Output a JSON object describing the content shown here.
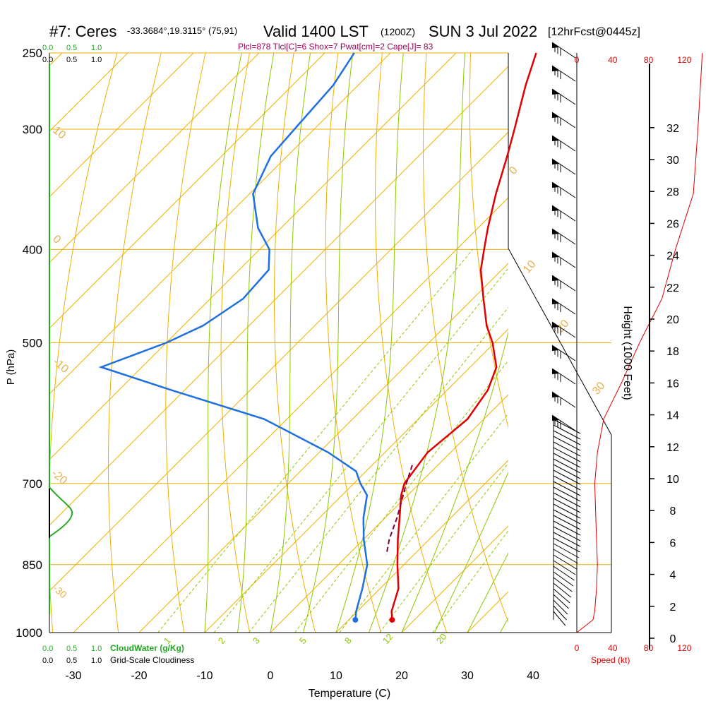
{
  "header": {
    "title_main": "#7: Ceres",
    "title_coords": "-33.3684°,19.3115° (75,91)",
    "title_valid": "Valid 1400 LST",
    "title_utc": "(1200Z)",
    "title_date": "SUN 3 Jul 2022",
    "title_fcst": "[12hrFcst@0445z]",
    "indices": "Plcl=878 Tlcl[C]=6 Shox=7 Pwat[cm]=2 Cape[J]= 83"
  },
  "colors": {
    "temp": "#e00000",
    "dewpoint": "#1f6fe0",
    "isotherm": "#f0b000",
    "dry_adiabat": "#f0b000",
    "moist_adiabat": "#8cc800",
    "mixing_ratio": "#8cc800",
    "cloudwater": "#22aa22",
    "parcel": "#800040",
    "speed": "#e00000",
    "indices_text": "#a0005a"
  },
  "chart_data": {
    "type": "line",
    "title": "Skew-T log-P sounding",
    "xlabel": "Temperature (C)",
    "ylabel": "P (hPa)",
    "x_ticks": [
      -30,
      -20,
      -10,
      0,
      10,
      20,
      30,
      40
    ],
    "y_ticks": [
      250,
      300,
      400,
      500,
      700,
      850,
      1000
    ],
    "xlim": [
      -35,
      36
    ],
    "ylim": [
      1000,
      250
    ],
    "skewed": true,
    "series": [
      {
        "name": "Temperature",
        "points": [
          [
            250,
            -47.8
          ],
          [
            270,
            -44.5
          ],
          [
            300,
            -39.5
          ],
          [
            320,
            -36.5
          ],
          [
            350,
            -32.5
          ],
          [
            380,
            -28.5
          ],
          [
            400,
            -25.8
          ],
          [
            420,
            -23.2
          ],
          [
            450,
            -18.4
          ],
          [
            480,
            -13.8
          ],
          [
            500,
            -10.3
          ],
          [
            530,
            -6.0
          ],
          [
            560,
            -3.8
          ],
          [
            600,
            -2.5
          ],
          [
            650,
            -3.5
          ],
          [
            700,
            -2.3
          ],
          [
            720,
            -1.0
          ],
          [
            760,
            2.2
          ],
          [
            800,
            5.2
          ],
          [
            850,
            9.0
          ],
          [
            900,
            12.8
          ],
          [
            950,
            15.2
          ],
          [
            970,
            16.6
          ]
        ]
      },
      {
        "name": "Dewpoint",
        "points": [
          [
            250,
            -75.5
          ],
          [
            270,
            -73.8
          ],
          [
            300,
            -73.0
          ],
          [
            320,
            -72.5
          ],
          [
            350,
            -69.5
          ],
          [
            380,
            -63.5
          ],
          [
            400,
            -58.5
          ],
          [
            420,
            -55.5
          ],
          [
            450,
            -55.0
          ],
          [
            480,
            -57.0
          ],
          [
            500,
            -60.0
          ],
          [
            530,
            -66.2
          ],
          [
            560,
            -52.0
          ],
          [
            600,
            -33.5
          ],
          [
            650,
            -18.6
          ],
          [
            680,
            -11.5
          ],
          [
            700,
            -9.0
          ],
          [
            720,
            -6.2
          ],
          [
            760,
            -3.3
          ],
          [
            800,
            0.0
          ],
          [
            850,
            4.4
          ],
          [
            900,
            7.3
          ],
          [
            950,
            9.8
          ],
          [
            970,
            11.0
          ]
        ]
      },
      {
        "name": "Parcel",
        "points": [
          [
            670,
            -3.9
          ],
          [
            700,
            -2.0
          ],
          [
            760,
            1.8
          ],
          [
            800,
            3.9
          ],
          [
            830,
            5.8
          ]
        ]
      }
    ],
    "speed_axis": {
      "label": "Speed (kt)",
      "ticks": [
        0,
        40,
        80,
        120
      ]
    },
    "height_axis": {
      "label": "Height (1000 Feet)",
      "ticks": [
        0,
        2,
        4,
        6,
        8,
        10,
        12,
        14,
        16,
        18,
        20,
        22,
        24,
        26,
        28,
        30,
        32
      ]
    },
    "cloudwater_scale": {
      "label": "CloudWater (g/Kg)",
      "ticks": [
        "0.0",
        "0.5",
        "1.0"
      ]
    },
    "cloudiness_scale": {
      "label": "Grid-Scale Cloudiness",
      "ticks": [
        "0.0",
        "0.5",
        "1.0"
      ]
    },
    "isotherm_labels": [
      "0",
      "10",
      "20",
      "30",
      "-10",
      "-20",
      "-30",
      "10"
    ],
    "mixing_ratio_labels": [
      "1",
      "2",
      "3",
      "5",
      "8",
      "12",
      "20"
    ],
    "wind_speed_profile_kt": [
      [
        1000,
        0
      ],
      [
        970,
        18
      ],
      [
        950,
        20
      ],
      [
        900,
        22
      ],
      [
        850,
        23
      ],
      [
        800,
        22
      ],
      [
        750,
        21
      ],
      [
        700,
        20
      ],
      [
        650,
        23
      ],
      [
        600,
        30
      ],
      [
        550,
        50
      ],
      [
        500,
        70
      ],
      [
        450,
        95
      ],
      [
        400,
        110
      ],
      [
        350,
        130
      ],
      [
        300,
        135
      ],
      [
        250,
        140
      ]
    ]
  }
}
